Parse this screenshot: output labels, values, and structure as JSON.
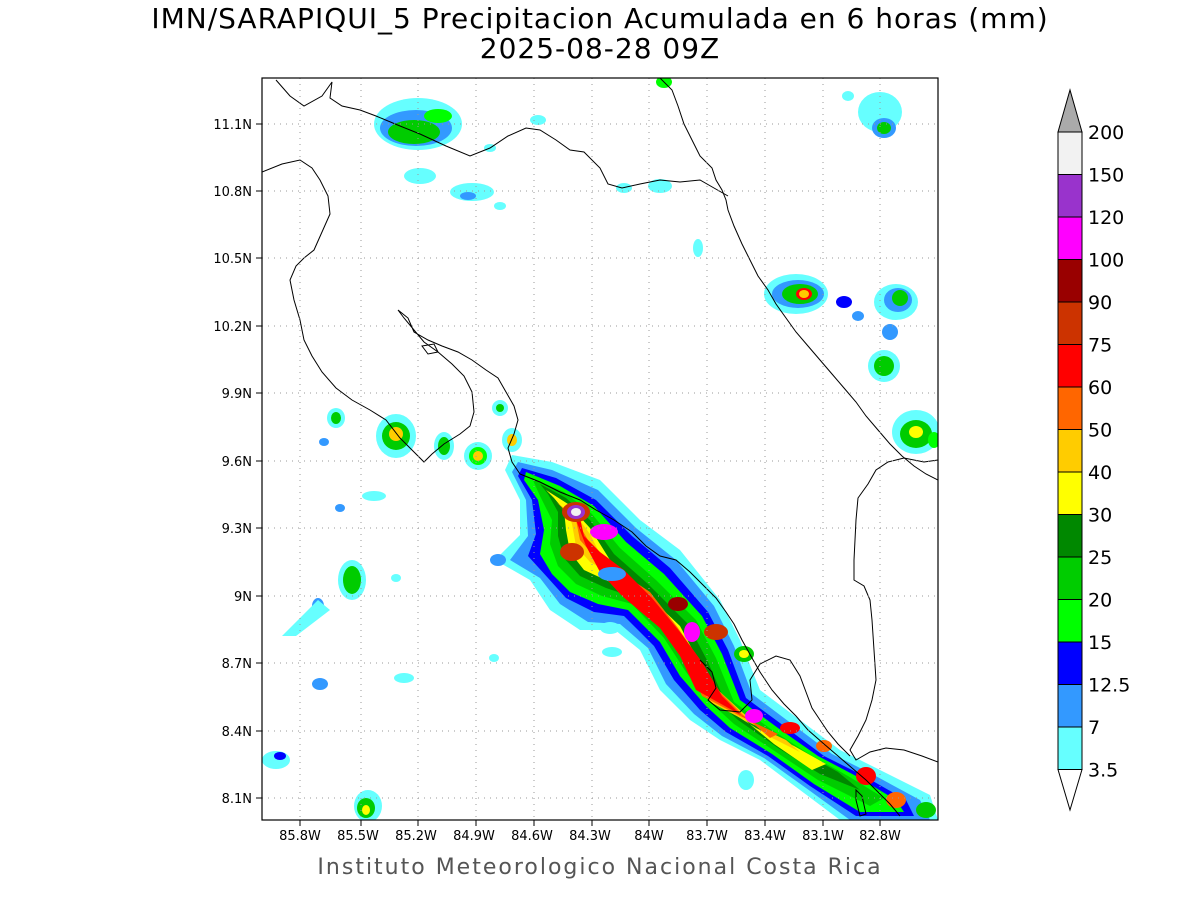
{
  "title": {
    "line1": "IMN/SARAPIQUI_5 Precipitacion Acumulada en 6 horas (mm)",
    "line2": "2025-08-28 09Z"
  },
  "credit": "Instituto Meteorologico Nacional Costa Rica",
  "map": {
    "lon_range": [
      -86.0,
      -83.0
    ],
    "lat_range": [
      8.0,
      11.2
    ],
    "lon_labels": [
      "85.8W",
      "85.5W",
      "85.2W",
      "84.9W",
      "84.6W",
      "84.3W",
      "84W",
      "83.7W",
      "83.4W",
      "83.1W",
      "82.8W"
    ],
    "lat_labels": [
      "11.1N",
      "10.8N",
      "10.5N",
      "10.2N",
      "9.9N",
      "9.6N",
      "9.3N",
      "9N",
      "8.7N",
      "8.4N",
      "8.1N"
    ],
    "grid": true
  },
  "colorbar": {
    "levels": [
      "3.5",
      "7",
      "12.5",
      "15",
      "20",
      "25",
      "30",
      "40",
      "50",
      "60",
      "75",
      "90",
      "100",
      "120",
      "150",
      "200"
    ],
    "colors": [
      "#ffffff",
      "#66ffff",
      "#3399ff",
      "#0000ff",
      "#00ff00",
      "#00cc00",
      "#008800",
      "#ffff00",
      "#ffcc00",
      "#ff6600",
      "#ff0000",
      "#cc3300",
      "#990000",
      "#ff00ff",
      "#9933cc",
      "#f2f2f2",
      "#aaaaaa"
    ]
  }
}
